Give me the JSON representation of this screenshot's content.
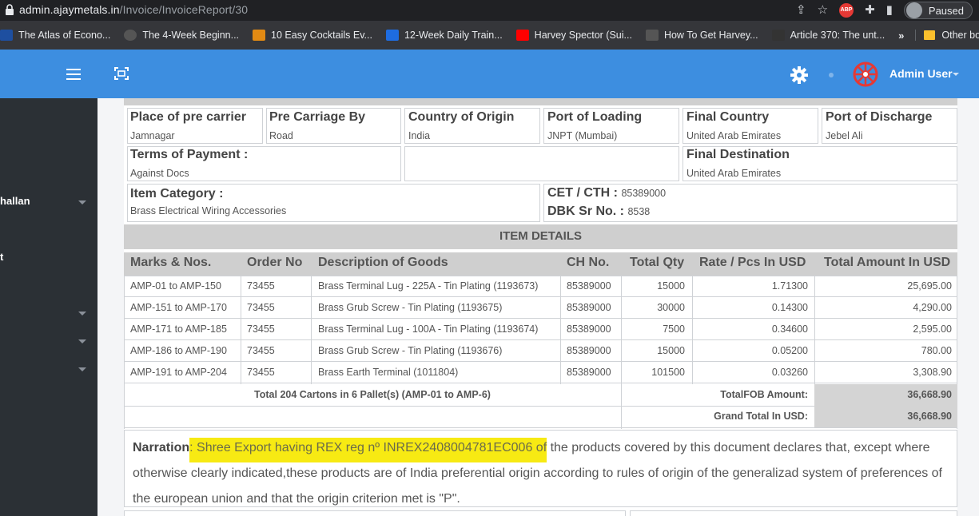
{
  "browser": {
    "url_host": "admin.ajaymetals.in",
    "url_path": "/Invoice/InvoiceReport/30",
    "paused_label": "Paused",
    "abp_label": "ABP",
    "bookmarks": [
      {
        "label": "The Atlas of Econo...",
        "color": "#1e4fa0"
      },
      {
        "label": "The 4-Week Beginn...",
        "color": "#444"
      },
      {
        "label": "10 Easy Cocktails Ev...",
        "color": "#e28a13"
      },
      {
        "label": "12-Week Daily Train...",
        "color": "#1e6ce0"
      },
      {
        "label": "Harvey Spector (Sui...",
        "color": "#ff0000"
      },
      {
        "label": "How To Get Harvey...",
        "color": "#555"
      },
      {
        "label": "Article 370: The unt...",
        "color": "#333"
      }
    ],
    "more_label": "»",
    "other_bookmarks": "Other bookmarks"
  },
  "header": {
    "user_name": "Admin User",
    "accent": "#3d8ee0"
  },
  "sidebar": {
    "items": [
      {
        "label": "hallan"
      },
      {
        "label": "t"
      }
    ]
  },
  "shipping": {
    "place_pre_carrier_label": "Place of pre carrier",
    "place_pre_carrier": "Jamnagar",
    "pre_carriage_label": "Pre Carriage By",
    "pre_carriage": "Road",
    "country_origin_label": "Country of Origin",
    "country_origin": "India",
    "port_loading_label": "Port of Loading",
    "port_loading": "JNPT (Mumbai)",
    "final_country_label": "Final Country",
    "final_country": "United Arab Emirates",
    "port_discharge_label": "Port of Discharge",
    "port_discharge": "Jebel Ali",
    "terms_label": "Terms of Payment :",
    "terms": "Against Docs",
    "final_dest_label": "Final Destination",
    "final_dest": "United Arab Emirates",
    "item_category_label": "Item Category :",
    "item_category": "Brass Electrical Wiring Accessories",
    "cet_label": "CET / CTH :",
    "cet": "85389000",
    "dbk_label": "DBK Sr No. :",
    "dbk": "8538"
  },
  "items": {
    "section_title": "ITEM DETAILS",
    "headers": [
      "Marks & Nos.",
      "Order No",
      "Description of Goods",
      "CH No.",
      "Total Qty",
      "Rate / Pcs In USD",
      "Total Amount In USD"
    ],
    "rows": [
      [
        "AMP-01 to AMP-150",
        "73455",
        "Brass Terminal Lug - 225A - Tin Plating (1193673)",
        "85389000",
        "15000",
        "1.71300",
        "25,695.00"
      ],
      [
        "AMP-151 to AMP-170",
        "73455",
        "Brass Grub Screw - Tin Plating (1193675)",
        "85389000",
        "30000",
        "0.14300",
        "4,290.00"
      ],
      [
        "AMP-171 to AMP-185",
        "73455",
        "Brass Terminal Lug - 100A - Tin Plating (1193674)",
        "85389000",
        "7500",
        "0.34600",
        "2,595.00"
      ],
      [
        "AMP-186 to AMP-190",
        "73455",
        "Brass Grub Screw - Tin Plating (1193676)",
        "85389000",
        "15000",
        "0.05200",
        "780.00"
      ],
      [
        "AMP-191 to AMP-204",
        "73455",
        "Brass Earth Terminal (1011804)",
        "85389000",
        "101500",
        "0.03260",
        "3,308.90"
      ]
    ],
    "total_cartons": "Total 204 Cartons in 6 Pallet(s) (AMP-01 to AMP-6)",
    "total_fob_label": "TotalFOB Amount:",
    "total_fob": "36,668.90",
    "grand_total_label": "Grand Total In USD:",
    "grand_total": "36,668.90"
  },
  "narration": {
    "label": "Narration",
    "highlighted": ": Shree Export having REX reg nº INREX2408004781EC006 of",
    "rest": " the products covered by this document declares that, except where otherwise clearly indicated,these products are of India preferential origin according to rules of origin of the generalizad system of preferences of the european union and that the origin criterion met is \"P\"."
  }
}
